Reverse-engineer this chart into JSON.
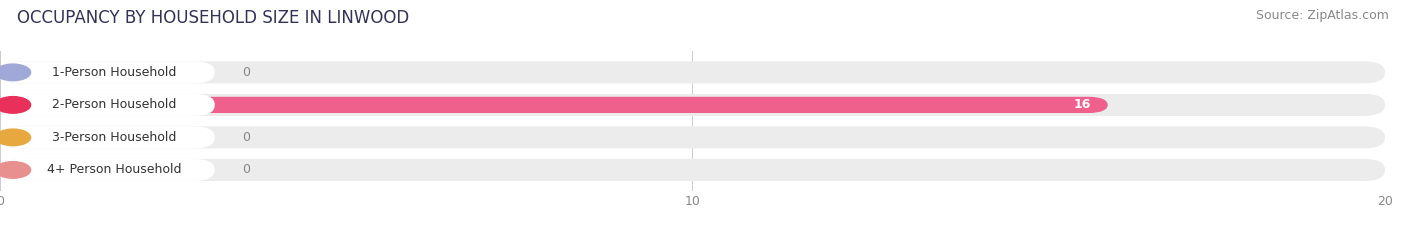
{
  "title": "OCCUPANCY BY HOUSEHOLD SIZE IN LINWOOD",
  "source": "Source: ZipAtlas.com",
  "categories": [
    "1-Person Household",
    "2-Person Household",
    "3-Person Household",
    "4+ Person Household"
  ],
  "values": [
    0,
    16,
    0,
    0
  ],
  "bar_colors": [
    "#b0b8e0",
    "#f0608c",
    "#f0c090",
    "#f0a0a0"
  ],
  "label_accent_colors": [
    "#a0a8d8",
    "#e8305a",
    "#e8a840",
    "#e89090"
  ],
  "xlim_max": 20,
  "xticks": [
    0,
    10,
    20
  ],
  "background_color": "#ffffff",
  "row_bg_color": "#ececec",
  "title_fontsize": 12,
  "source_fontsize": 9,
  "label_fontsize": 9,
  "value_fontsize": 9
}
